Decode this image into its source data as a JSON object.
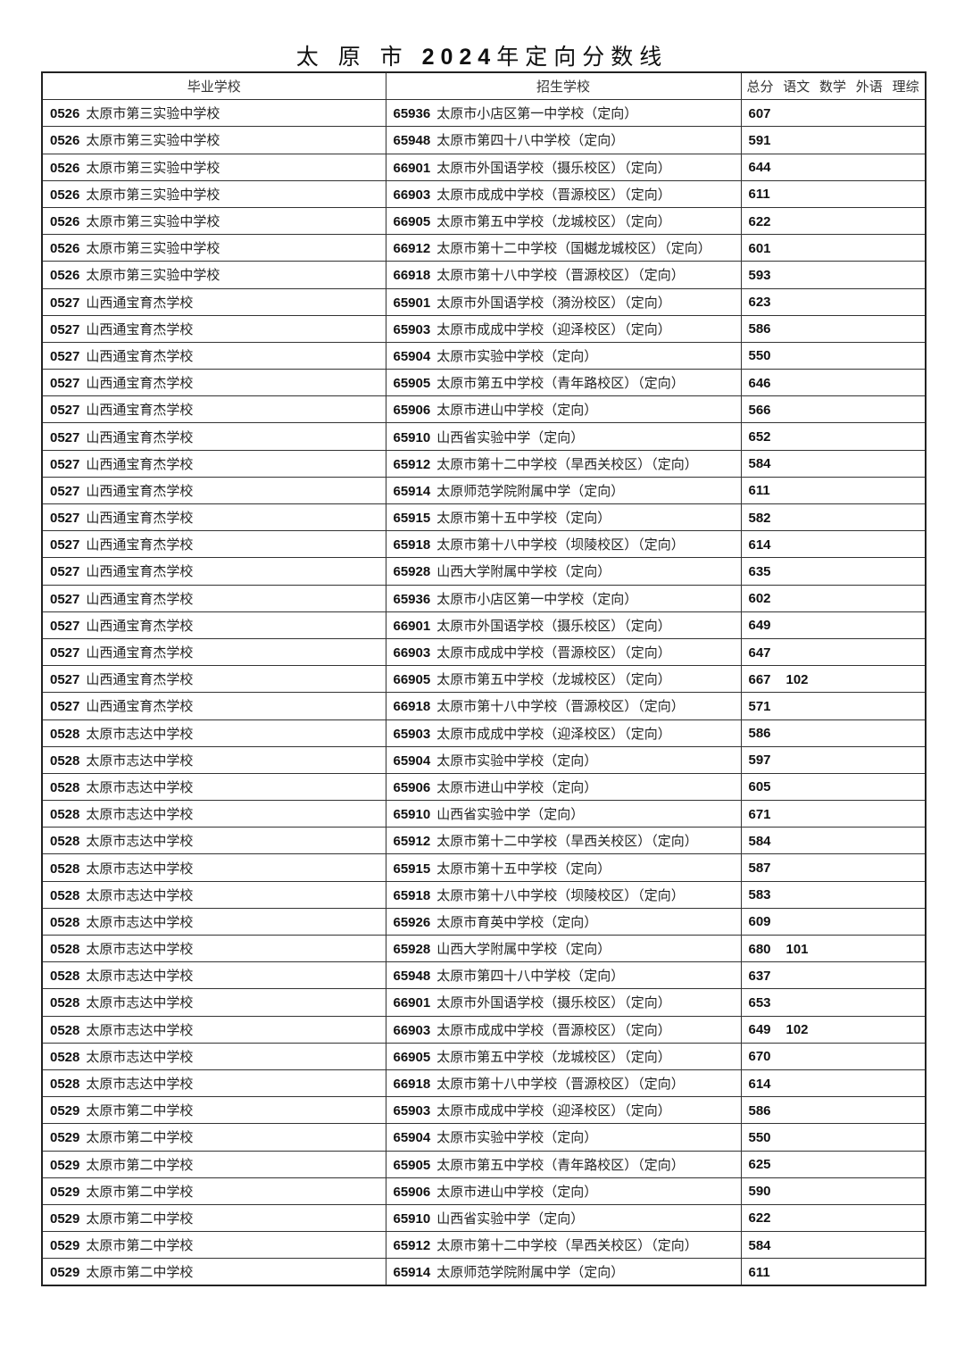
{
  "title": {
    "pre": "太 原 市 ",
    "year": "2024",
    "post": "年定向分数线"
  },
  "headers": {
    "grad": "毕业学校",
    "enroll": "招生学校",
    "scores": "总分 语文 数学 外语 理综"
  },
  "rows": [
    [
      "0526",
      "太原市第三实验中学校",
      "65936",
      "太原市小店区第一中学校（定向）",
      "607",
      ""
    ],
    [
      "0526",
      "太原市第三实验中学校",
      "65948",
      "太原市第四十八中学校（定向）",
      "591",
      ""
    ],
    [
      "0526",
      "太原市第三实验中学校",
      "66901",
      "太原市外国语学校（摄乐校区）（定向）",
      "644",
      ""
    ],
    [
      "0526",
      "太原市第三实验中学校",
      "66903",
      "太原市成成中学校（晋源校区）（定向）",
      "611",
      ""
    ],
    [
      "0526",
      "太原市第三实验中学校",
      "66905",
      "太原市第五中学校（龙城校区）（定向）",
      "622",
      ""
    ],
    [
      "0526",
      "太原市第三实验中学校",
      "66912",
      "太原市第十二中学校（国樾龙城校区）（定向）",
      "601",
      ""
    ],
    [
      "0526",
      "太原市第三实验中学校",
      "66918",
      "太原市第十八中学校（晋源校区）（定向）",
      "593",
      ""
    ],
    [
      "0527",
      "山西通宝育杰学校",
      "65901",
      "太原市外国语学校（漪汾校区）（定向）",
      "623",
      ""
    ],
    [
      "0527",
      "山西通宝育杰学校",
      "65903",
      "太原市成成中学校（迎泽校区）（定向）",
      "586",
      ""
    ],
    [
      "0527",
      "山西通宝育杰学校",
      "65904",
      "太原市实验中学校（定向）",
      "550",
      ""
    ],
    [
      "0527",
      "山西通宝育杰学校",
      "65905",
      "太原市第五中学校（青年路校区）（定向）",
      "646",
      ""
    ],
    [
      "0527",
      "山西通宝育杰学校",
      "65906",
      "太原市进山中学校（定向）",
      "566",
      ""
    ],
    [
      "0527",
      "山西通宝育杰学校",
      "65910",
      "山西省实验中学（定向）",
      "652",
      ""
    ],
    [
      "0527",
      "山西通宝育杰学校",
      "65912",
      "太原市第十二中学校（旱西关校区）（定向）",
      "584",
      ""
    ],
    [
      "0527",
      "山西通宝育杰学校",
      "65914",
      "太原师范学院附属中学（定向）",
      "611",
      ""
    ],
    [
      "0527",
      "山西通宝育杰学校",
      "65915",
      "太原市第十五中学校（定向）",
      "582",
      ""
    ],
    [
      "0527",
      "山西通宝育杰学校",
      "65918",
      "太原市第十八中学校（坝陵校区）（定向）",
      "614",
      ""
    ],
    [
      "0527",
      "山西通宝育杰学校",
      "65928",
      "山西大学附属中学校（定向）",
      "635",
      ""
    ],
    [
      "0527",
      "山西通宝育杰学校",
      "65936",
      "太原市小店区第一中学校（定向）",
      "602",
      ""
    ],
    [
      "0527",
      "山西通宝育杰学校",
      "66901",
      "太原市外国语学校（摄乐校区）（定向）",
      "649",
      ""
    ],
    [
      "0527",
      "山西通宝育杰学校",
      "66903",
      "太原市成成中学校（晋源校区）（定向）",
      "647",
      ""
    ],
    [
      "0527",
      "山西通宝育杰学校",
      "66905",
      "太原市第五中学校（龙城校区）（定向）",
      "667",
      "102"
    ],
    [
      "0527",
      "山西通宝育杰学校",
      "66918",
      "太原市第十八中学校（晋源校区）（定向）",
      "571",
      ""
    ],
    [
      "0528",
      "太原市志达中学校",
      "65903",
      "太原市成成中学校（迎泽校区）（定向）",
      "586",
      ""
    ],
    [
      "0528",
      "太原市志达中学校",
      "65904",
      "太原市实验中学校（定向）",
      "597",
      ""
    ],
    [
      "0528",
      "太原市志达中学校",
      "65906",
      "太原市进山中学校（定向）",
      "605",
      ""
    ],
    [
      "0528",
      "太原市志达中学校",
      "65910",
      "山西省实验中学（定向）",
      "671",
      ""
    ],
    [
      "0528",
      "太原市志达中学校",
      "65912",
      "太原市第十二中学校（旱西关校区）（定向）",
      "584",
      ""
    ],
    [
      "0528",
      "太原市志达中学校",
      "65915",
      "太原市第十五中学校（定向）",
      "587",
      ""
    ],
    [
      "0528",
      "太原市志达中学校",
      "65918",
      "太原市第十八中学校（坝陵校区）（定向）",
      "583",
      ""
    ],
    [
      "0528",
      "太原市志达中学校",
      "65926",
      "太原市育英中学校（定向）",
      "609",
      ""
    ],
    [
      "0528",
      "太原市志达中学校",
      "65928",
      "山西大学附属中学校（定向）",
      "680",
      "101"
    ],
    [
      "0528",
      "太原市志达中学校",
      "65948",
      "太原市第四十八中学校（定向）",
      "637",
      ""
    ],
    [
      "0528",
      "太原市志达中学校",
      "66901",
      "太原市外国语学校（摄乐校区）（定向）",
      "653",
      ""
    ],
    [
      "0528",
      "太原市志达中学校",
      "66903",
      "太原市成成中学校（晋源校区）（定向）",
      "649",
      "102"
    ],
    [
      "0528",
      "太原市志达中学校",
      "66905",
      "太原市第五中学校（龙城校区）（定向）",
      "670",
      ""
    ],
    [
      "0528",
      "太原市志达中学校",
      "66918",
      "太原市第十八中学校（晋源校区）（定向）",
      "614",
      ""
    ],
    [
      "0529",
      "太原市第二中学校",
      "65903",
      "太原市成成中学校（迎泽校区）（定向）",
      "586",
      ""
    ],
    [
      "0529",
      "太原市第二中学校",
      "65904",
      "太原市实验中学校（定向）",
      "550",
      ""
    ],
    [
      "0529",
      "太原市第二中学校",
      "65905",
      "太原市第五中学校（青年路校区）（定向）",
      "625",
      ""
    ],
    [
      "0529",
      "太原市第二中学校",
      "65906",
      "太原市进山中学校（定向）",
      "590",
      ""
    ],
    [
      "0529",
      "太原市第二中学校",
      "65910",
      "山西省实验中学（定向）",
      "622",
      ""
    ],
    [
      "0529",
      "太原市第二中学校",
      "65912",
      "太原市第十二中学校（旱西关校区）（定向）",
      "584",
      ""
    ],
    [
      "0529",
      "太原市第二中学校",
      "65914",
      "太原师范学院附属中学（定向）",
      "611",
      ""
    ]
  ]
}
